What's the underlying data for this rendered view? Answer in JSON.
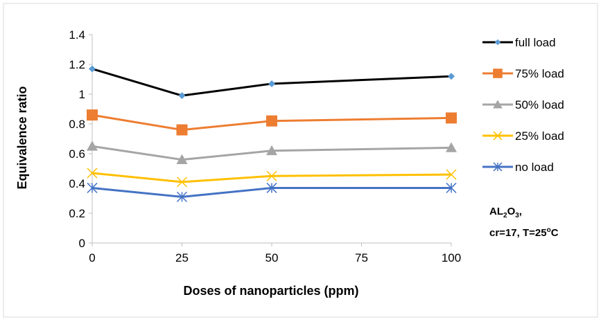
{
  "chart_data": {
    "type": "line",
    "xlabel": "Doses of nanoparticles (ppm)",
    "ylabel": "Equivalence ratio",
    "x": [
      0,
      25,
      50,
      100
    ],
    "x_ticks": [
      "0",
      "25",
      "50",
      "75",
      "100"
    ],
    "y_ticks": [
      "0",
      "0.2",
      "0.4",
      "0.6",
      "0.8",
      "1",
      "1.2",
      "1.4"
    ],
    "xlim": [
      0,
      100
    ],
    "ylim": [
      0,
      1.4
    ],
    "grid": false,
    "legend_position": "right",
    "series": [
      {
        "name": "full load",
        "values": [
          1.17,
          0.99,
          1.07,
          1.12
        ],
        "color": "#000000",
        "marker": "diamond",
        "marker_color": "#5b9bd5"
      },
      {
        "name": "75% load",
        "values": [
          0.86,
          0.76,
          0.82,
          0.84
        ],
        "color": "#ed7d31",
        "marker": "square",
        "marker_color": "#ed7d31"
      },
      {
        "name": "50% load",
        "values": [
          0.65,
          0.56,
          0.62,
          0.64
        ],
        "color": "#a5a5a5",
        "marker": "triangle",
        "marker_color": "#a5a5a5"
      },
      {
        "name": "25% load",
        "values": [
          0.47,
          0.41,
          0.45,
          0.46
        ],
        "color": "#ffc000",
        "marker": "x",
        "marker_color": "#ffc000"
      },
      {
        "name": "no load",
        "values": [
          0.37,
          0.31,
          0.37,
          0.37
        ],
        "color": "#4472c4",
        "marker": "star",
        "marker_color": "#4472c4"
      }
    ],
    "annotation": {
      "line1_base": "AL",
      "line1_sub1": "2",
      "line1_mid": "O",
      "line1_sub2": "3",
      "line1_tail": ",",
      "line2_base": "cr=17, T=25",
      "line2_sup": "o",
      "line2_tail": "C"
    }
  }
}
